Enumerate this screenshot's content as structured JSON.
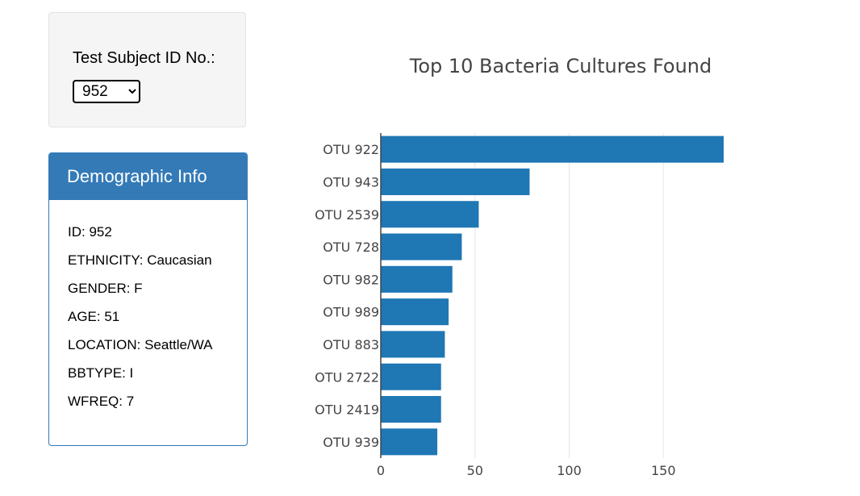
{
  "selector": {
    "label": "Test Subject ID No.:",
    "selected": "952"
  },
  "demographics": {
    "heading": "Demographic Info",
    "lines": [
      "ID: 952",
      "ETHNICITY: Caucasian",
      "GENDER: F",
      "AGE: 51",
      "LOCATION: Seattle/WA",
      "BBTYPE: I",
      "WFREQ: 7"
    ]
  },
  "colors": {
    "panel_accent": "#337ab7",
    "bar": "#1f77b4"
  },
  "chart_data": {
    "type": "bar",
    "orientation": "horizontal",
    "title": "Top 10 Bacteria Cultures Found",
    "categories": [
      "OTU 922",
      "OTU 943",
      "OTU 2539",
      "OTU 728",
      "OTU 982",
      "OTU 989",
      "OTU 883",
      "OTU 2722",
      "OTU 2419",
      "OTU 939"
    ],
    "values": [
      182,
      79,
      52,
      43,
      38,
      36,
      34,
      32,
      32,
      30
    ],
    "xticks": [
      0,
      50,
      100,
      150
    ],
    "xlim": [
      0,
      182
    ],
    "grid": true
  }
}
